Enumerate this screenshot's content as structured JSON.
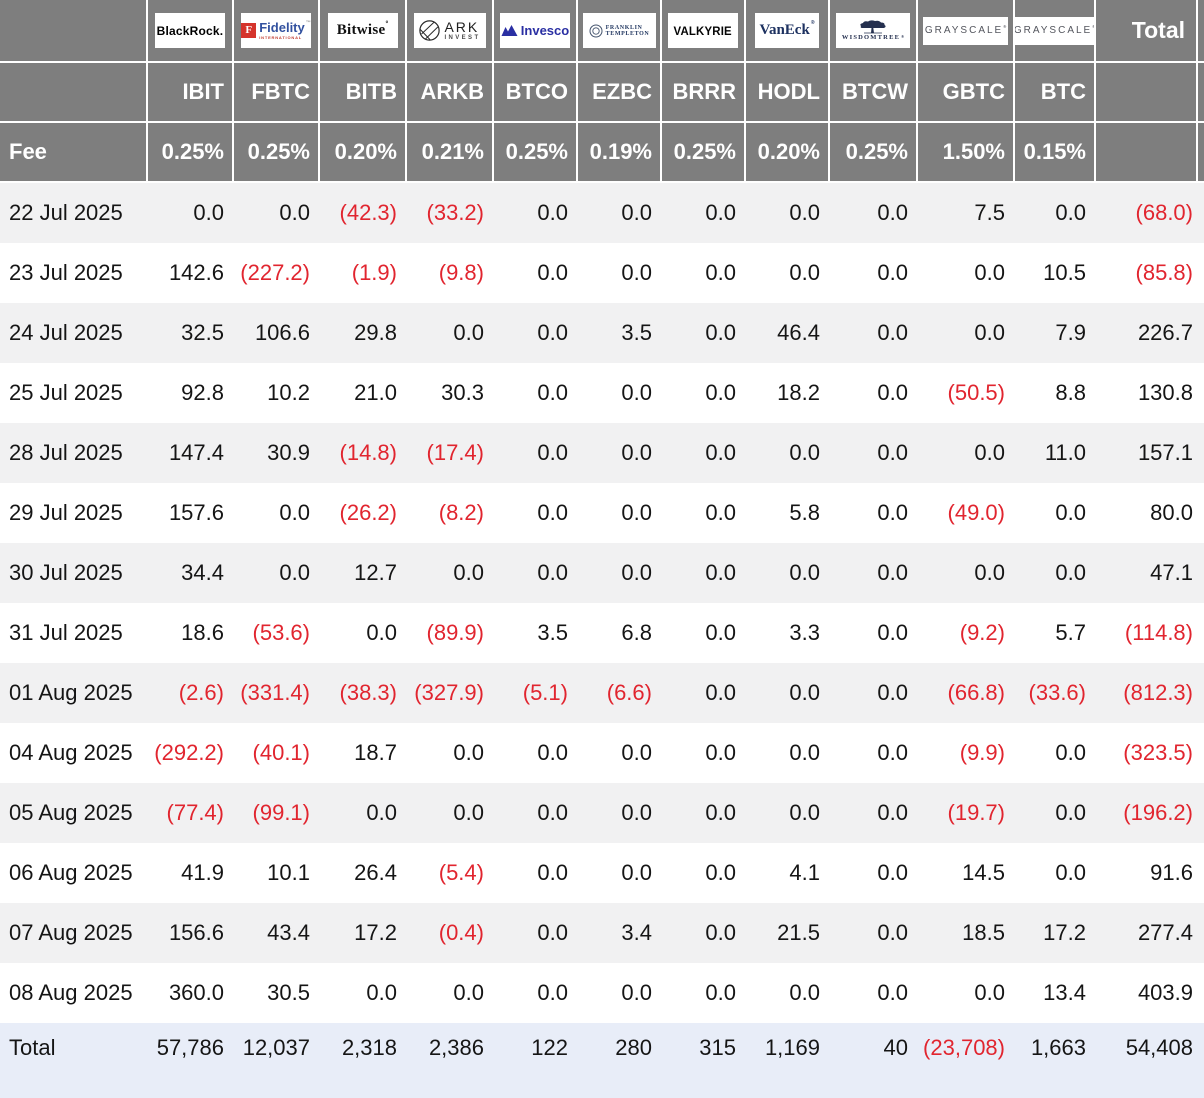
{
  "colors": {
    "header_bg": "#7e7e7e",
    "header_text": "#ffffff",
    "body_text": "#151515",
    "negative": "#e1252f",
    "row_alt_bg": "#f1f1f2",
    "row_bg": "#ffffff",
    "total_row_bg": "#e8edf8",
    "grid_line": "#ffffff"
  },
  "logos": {
    "blackrock": "BlackRock.",
    "fidelity_f": "F",
    "fidelity": "Fidelity",
    "fidelity_mark": "™",
    "fidelity_sub": "INTERNATIONAL",
    "bitwise": "Bitwise",
    "bitwise_mark": "°",
    "ark": "ARK",
    "ark_sub": "INVEST",
    "invesco": "Invesco",
    "franklin": "FRANKLIN",
    "templeton": "TEMPLETON",
    "valkyrie": "VALKYRIE",
    "vaneck": "VanEck",
    "vaneck_mark": "®",
    "wisdomtree": "WISDOMTREE",
    "wisdomtree_mark": "®",
    "grayscale_gbtc": "GRAYSCALE",
    "grayscale_btc": "GRAYSCALE",
    "grayscale_mark": "®"
  },
  "chart_data": {
    "type": "table",
    "issuers": [
      "BlackRock",
      "Fidelity",
      "Bitwise",
      "ARK Invest",
      "Invesco",
      "Franklin Templeton",
      "Valkyrie",
      "VanEck",
      "WisdomTree",
      "Grayscale",
      "Grayscale"
    ],
    "tickers": [
      "IBIT",
      "FBTC",
      "BITB",
      "ARKB",
      "BTCO",
      "EZBC",
      "BRRR",
      "HODL",
      "BTCW",
      "GBTC",
      "BTC"
    ],
    "fee_row_label": "Fee",
    "fees": [
      "0.25%",
      "0.25%",
      "0.20%",
      "0.21%",
      "0.25%",
      "0.19%",
      "0.25%",
      "0.20%",
      "0.25%",
      "1.50%",
      "0.15%"
    ],
    "total_column_label": "Total",
    "total_row_label": "Total",
    "rows": [
      {
        "date": "22 Jul 2025",
        "values": [
          0.0,
          0.0,
          -42.3,
          -33.2,
          0.0,
          0.0,
          0.0,
          0.0,
          0.0,
          7.5,
          0.0
        ],
        "total": -68.0
      },
      {
        "date": "23 Jul 2025",
        "values": [
          142.6,
          -227.2,
          -1.9,
          -9.8,
          0.0,
          0.0,
          0.0,
          0.0,
          0.0,
          0.0,
          10.5
        ],
        "total": -85.8
      },
      {
        "date": "24 Jul 2025",
        "values": [
          32.5,
          106.6,
          29.8,
          0.0,
          0.0,
          3.5,
          0.0,
          46.4,
          0.0,
          0.0,
          7.9
        ],
        "total": 226.7
      },
      {
        "date": "25 Jul 2025",
        "values": [
          92.8,
          10.2,
          21.0,
          30.3,
          0.0,
          0.0,
          0.0,
          18.2,
          0.0,
          -50.5,
          8.8
        ],
        "total": 130.8
      },
      {
        "date": "28 Jul 2025",
        "values": [
          147.4,
          30.9,
          -14.8,
          -17.4,
          0.0,
          0.0,
          0.0,
          0.0,
          0.0,
          0.0,
          11.0
        ],
        "total": 157.1
      },
      {
        "date": "29 Jul 2025",
        "values": [
          157.6,
          0.0,
          -26.2,
          -8.2,
          0.0,
          0.0,
          0.0,
          5.8,
          0.0,
          -49.0,
          0.0
        ],
        "total": 80.0
      },
      {
        "date": "30 Jul 2025",
        "values": [
          34.4,
          0.0,
          12.7,
          0.0,
          0.0,
          0.0,
          0.0,
          0.0,
          0.0,
          0.0,
          0.0
        ],
        "total": 47.1
      },
      {
        "date": "31 Jul 2025",
        "values": [
          18.6,
          -53.6,
          0.0,
          -89.9,
          3.5,
          6.8,
          0.0,
          3.3,
          0.0,
          -9.2,
          5.7
        ],
        "total": -114.8
      },
      {
        "date": "01 Aug 2025",
        "values": [
          -2.6,
          -331.4,
          -38.3,
          -327.9,
          -5.1,
          -6.6,
          0.0,
          0.0,
          0.0,
          -66.8,
          -33.6
        ],
        "total": -812.3
      },
      {
        "date": "04 Aug 2025",
        "values": [
          -292.2,
          -40.1,
          18.7,
          0.0,
          0.0,
          0.0,
          0.0,
          0.0,
          0.0,
          -9.9,
          0.0
        ],
        "total": -323.5
      },
      {
        "date": "05 Aug 2025",
        "values": [
          -77.4,
          -99.1,
          0.0,
          0.0,
          0.0,
          0.0,
          0.0,
          0.0,
          0.0,
          -19.7,
          0.0
        ],
        "total": -196.2
      },
      {
        "date": "06 Aug 2025",
        "values": [
          41.9,
          10.1,
          26.4,
          -5.4,
          0.0,
          0.0,
          0.0,
          4.1,
          0.0,
          14.5,
          0.0
        ],
        "total": 91.6
      },
      {
        "date": "07 Aug 2025",
        "values": [
          156.6,
          43.4,
          17.2,
          -0.4,
          0.0,
          3.4,
          0.0,
          21.5,
          0.0,
          18.5,
          17.2
        ],
        "total": 277.4
      },
      {
        "date": "08 Aug 2025",
        "values": [
          360.0,
          30.5,
          0.0,
          0.0,
          0.0,
          0.0,
          0.0,
          0.0,
          0.0,
          0.0,
          13.4
        ],
        "total": 403.9
      }
    ],
    "total_row": {
      "values": [
        57786,
        12037,
        2318,
        2386,
        122,
        280,
        315,
        1169,
        40,
        -23708,
        1663
      ],
      "total": 54408
    }
  }
}
